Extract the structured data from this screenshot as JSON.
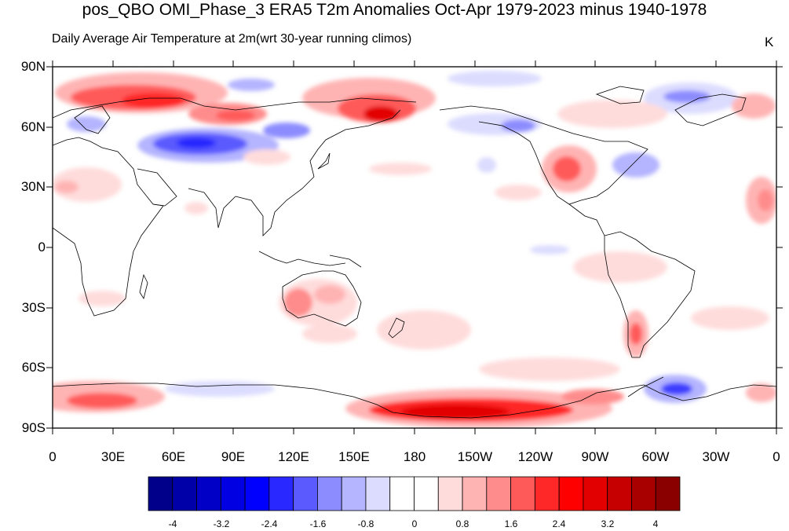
{
  "title": "pos_QBO OMI_Phase_3 ERA5 T2m Anomalies Oct-Apr 1979-2023 minus 1940-1978",
  "subtitle": "Daily Average Air Temperature at 2m(wrt 30-year running climos)",
  "units": "K",
  "lat_labels": [
    "90N",
    "60N",
    "30N",
    "0",
    "30S",
    "60S",
    "90S"
  ],
  "lon_labels": [
    "0",
    "30E",
    "60E",
    "90E",
    "120E",
    "150E",
    "180",
    "150W",
    "120W",
    "90W",
    "60W",
    "30W",
    "0"
  ],
  "colorbar": {
    "labels": [
      "-4",
      "-3.2",
      "-2.4",
      "-1.6",
      "-0.8",
      "0",
      "0.8",
      "1.6",
      "2.4",
      "3.2",
      "4"
    ],
    "colors": [
      "#00008a",
      "#0000a8",
      "#0000c6",
      "#0000e2",
      "#0000ff",
      "#2828ff",
      "#5a5aff",
      "#8c8cff",
      "#b4b4ff",
      "#dcdcff",
      "#ffffff",
      "#ffffff",
      "#ffdcdc",
      "#ffb4b4",
      "#ff8c8c",
      "#ff5a5a",
      "#ff2828",
      "#ff0000",
      "#e20000",
      "#c60000",
      "#a80000",
      "#8a0000"
    ]
  },
  "colors": {
    "neg_light": "#dcdcff",
    "neg_mid": "#8c8cff",
    "neg_strong": "#3c3cff",
    "pos_light": "#ffdcdc",
    "pos_mid": "#ff8c8c",
    "pos_strong": "#ff2828",
    "pos_max": "#c60000"
  }
}
